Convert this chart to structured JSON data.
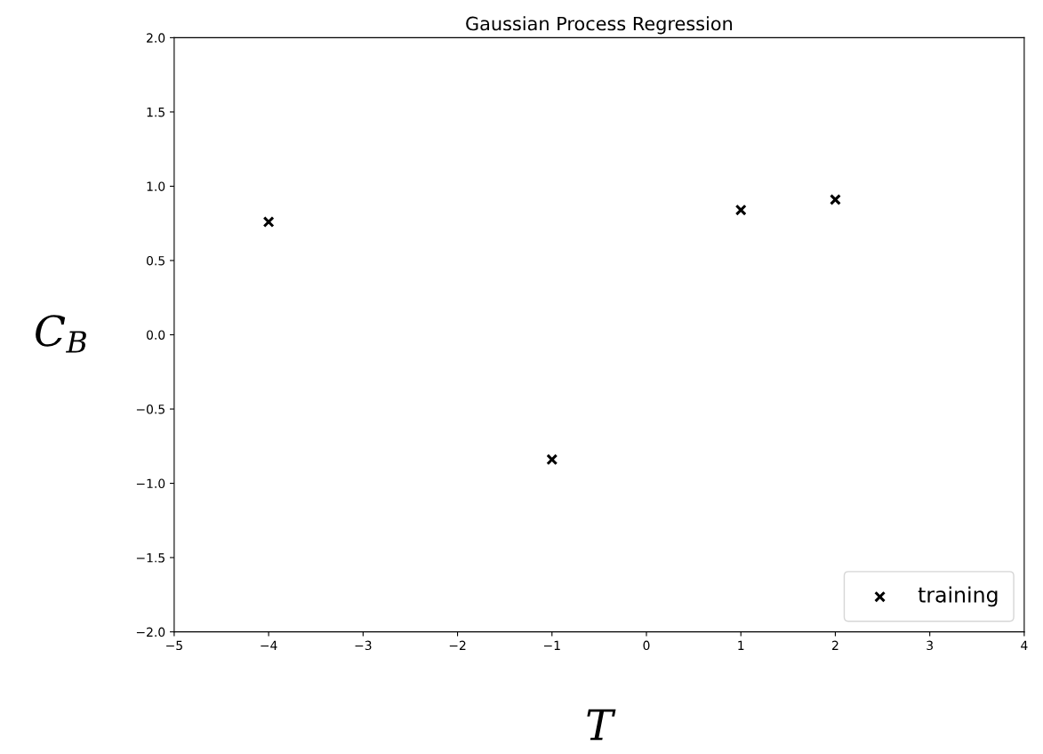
{
  "chart_data": {
    "type": "scatter",
    "title": "Gaussian Process Regression",
    "xlabel": "T",
    "ylabel": "C$_{B}$",
    "x": [
      -4,
      -1,
      1,
      2
    ],
    "series": [
      {
        "name": "training",
        "color": "#000000",
        "values": [
          0.76,
          -0.84,
          0.84,
          0.91
        ]
      }
    ],
    "xlim": [
      -5,
      4
    ],
    "xticks": [
      -5,
      -4,
      -3,
      -2,
      -1,
      0,
      1,
      2,
      3,
      4
    ],
    "ylim": [
      -2.0,
      2.0
    ],
    "yticks": [
      {
        "value": -2.0,
        "label": "−2.0"
      },
      {
        "value": -1.5,
        "label": "−1.5"
      },
      {
        "value": -1.0,
        "label": "−1.0"
      },
      {
        "value": -0.5,
        "label": "−0.5"
      },
      {
        "value": 0.0,
        "label": "0.0"
      },
      {
        "value": 0.5,
        "label": "0.5"
      },
      {
        "value": 1.0,
        "label": "1.0"
      },
      {
        "value": 1.5,
        "label": "1.5"
      },
      {
        "value": 2.0,
        "label": "2.0"
      }
    ],
    "marker": "cross",
    "grid": false,
    "legend": "bottom right"
  }
}
